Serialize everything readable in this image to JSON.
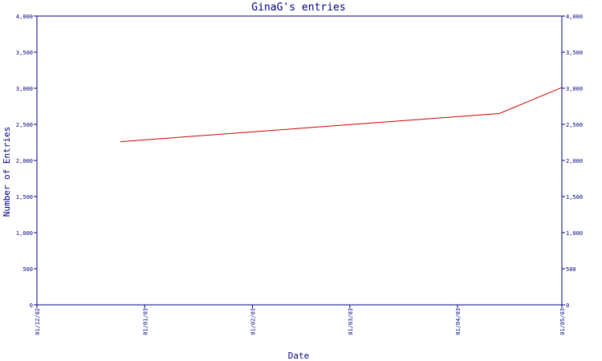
{
  "chart_data": {
    "type": "line",
    "title": "GinaG's entries",
    "xlabel": "Date",
    "ylabel": "Number of Entries",
    "x_tick_labels": [
      "01/12/02",
      "01/01/03",
      "01/02/03",
      "01/03/03",
      "01/04/03",
      "01/05/03"
    ],
    "y_tick_labels": [
      "0",
      "500",
      "1,000",
      "1,500",
      "2,000",
      "2,500",
      "3,000",
      "3,500",
      "4,000"
    ],
    "y_ticks": [
      0,
      500,
      1000,
      1500,
      2000,
      2500,
      3000,
      3500,
      4000
    ],
    "ylim": [
      0,
      4000
    ],
    "xlim": [
      "2002-12-01",
      "2003-05-01"
    ],
    "grid": false,
    "series": [
      {
        "color": "#cc0000",
        "x": [
          "2002-12-25",
          "2003-04-13",
          "2003-05-01"
        ],
        "values": [
          2260,
          2650,
          3010
        ]
      }
    ]
  }
}
